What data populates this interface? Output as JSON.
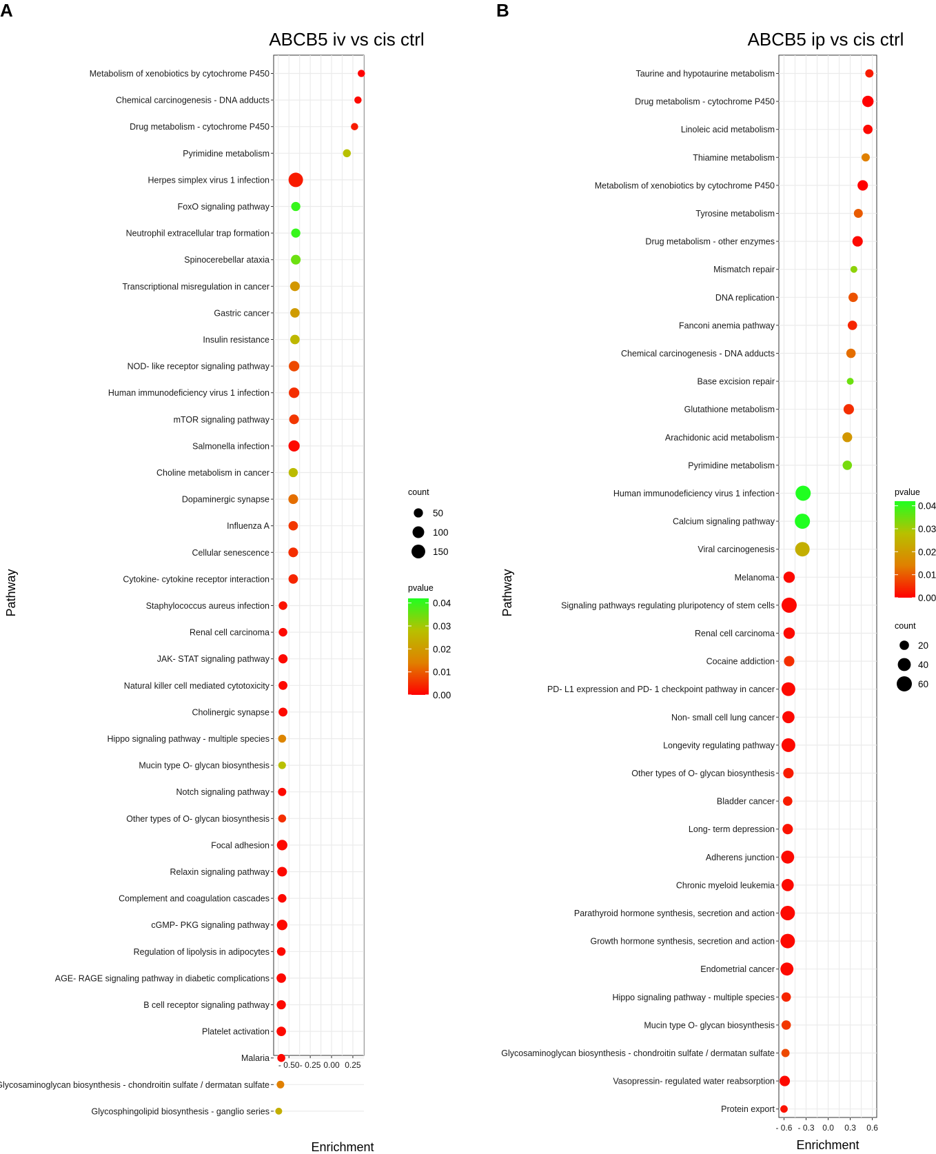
{
  "chart_data": [
    {
      "panel_label": "A",
      "type": "scatter",
      "title": "ABCB5 iv vs cis ctrl",
      "xlabel": "Enrichment",
      "ylabel": "Pathway",
      "xlim": [
        -0.68,
        0.38
      ],
      "xticks": [
        -0.5,
        -0.25,
        0.0,
        0.25
      ],
      "xtick_labels": [
        "- 0.50",
        "- 0.25",
        "0.00",
        "0.25"
      ],
      "grid": true,
      "categories": [
        "Metabolism of xenobiotics by cytochrome P450",
        "Chemical carcinogenesis -  DNA adducts",
        "Drug metabolism -  cytochrome P450",
        "Pyrimidine metabolism",
        "Herpes simplex virus 1 infection",
        "FoxO signaling pathway",
        "Neutrophil extracellular trap formation",
        "Spinocerebellar ataxia",
        "Transcriptional misregulation in cancer",
        "Gastric cancer",
        "Insulin resistance",
        "NOD- like receptor signaling pathway",
        "Human immunodeficiency virus 1 infection",
        "mTOR signaling pathway",
        "Salmonella infection",
        "Choline metabolism in cancer",
        "Dopaminergic synapse",
        "Influenza A",
        "Cellular senescence",
        "Cytokine- cytokine receptor interaction",
        "Staphylococcus aureus infection",
        "Renal cell carcinoma",
        "JAK- STAT signaling pathway",
        "Natural killer cell mediated cytotoxicity",
        "Cholinergic synapse",
        "Hippo signaling pathway -  multiple species",
        "Mucin type O- glycan biosynthesis",
        "Notch signaling pathway",
        "Other types of O- glycan biosynthesis",
        "Focal adhesion",
        "Relaxin signaling pathway",
        "Complement and coagulation cascades",
        "cGMP- PKG signaling pathway",
        "Regulation of lipolysis in adipocytes",
        "AGE- RAGE signaling pathway in diabetic complications",
        "B cell receptor signaling pathway",
        "Platelet activation",
        "Malaria",
        "Glycosaminoglycan biosynthesis -  chondroitin sulfate / dermatan sulfate",
        "Glycosphingolipid biosynthesis -  ganglio series"
      ],
      "enrichment": [
        0.35,
        0.31,
        0.27,
        0.18,
        -0.42,
        -0.42,
        -0.42,
        -0.42,
        -0.43,
        -0.43,
        -0.43,
        -0.44,
        -0.44,
        -0.44,
        -0.44,
        -0.45,
        -0.45,
        -0.45,
        -0.45,
        -0.45,
        -0.57,
        -0.57,
        -0.57,
        -0.57,
        -0.57,
        -0.58,
        -0.58,
        -0.58,
        -0.58,
        -0.58,
        -0.58,
        -0.58,
        -0.58,
        -0.59,
        -0.59,
        -0.59,
        -0.59,
        -0.59,
        -0.6,
        -0.62
      ],
      "count": [
        20,
        20,
        20,
        30,
        170,
        50,
        50,
        60,
        60,
        55,
        55,
        75,
        75,
        60,
        90,
        50,
        60,
        55,
        60,
        55,
        40,
        40,
        50,
        45,
        45,
        30,
        25,
        35,
        30,
        75,
        60,
        40,
        75,
        40,
        55,
        50,
        55,
        30,
        25,
        15
      ],
      "pvalue": [
        0.0,
        0.001,
        0.003,
        0.028,
        0.003,
        0.04,
        0.04,
        0.035,
        0.019,
        0.02,
        0.026,
        0.008,
        0.005,
        0.006,
        0.001,
        0.027,
        0.012,
        0.006,
        0.005,
        0.004,
        0.002,
        0.001,
        0.001,
        0.001,
        0.001,
        0.015,
        0.028,
        0.001,
        0.005,
        0.001,
        0.001,
        0.001,
        0.001,
        0.001,
        0.001,
        0.001,
        0.001,
        0.001,
        0.014,
        0.024
      ],
      "size_legend": {
        "title": "count",
        "values": [
          50,
          100,
          150
        ],
        "labels": [
          "50",
          "100",
          "150"
        ]
      },
      "color_legend": {
        "title": "pvalue",
        "low": 0.0,
        "high": 0.042,
        "labels": [
          "0.04",
          "0.03",
          "0.02",
          "0.01",
          "0.00"
        ],
        "values": [
          0.04,
          0.03,
          0.02,
          0.01,
          0.0
        ],
        "colors": [
          "#ff0000",
          "#e08000",
          "#b8c000",
          "#20ff20"
        ]
      }
    },
    {
      "panel_label": "B",
      "type": "scatter",
      "title": "ABCB5 ip vs cis ctrl",
      "xlabel": "Enrichment",
      "ylabel": "Pathway",
      "xlim": [
        -0.67,
        0.66
      ],
      "xticks": [
        -0.6,
        -0.3,
        0.0,
        0.3,
        0.6
      ],
      "xtick_labels": [
        "- 0.6",
        "- 0.3",
        "0.0",
        "0.3",
        "0.6"
      ],
      "grid": true,
      "categories": [
        "Taurine and hypotaurine metabolism",
        "Drug metabolism -  cytochrome P450",
        "Linoleic acid metabolism",
        "Thiamine metabolism",
        "Metabolism of xenobiotics by cytochrome P450",
        "Tyrosine metabolism",
        "Drug metabolism -  other enzymes",
        "Mismatch repair",
        "DNA replication",
        "Fanconi anemia pathway",
        "Chemical carcinogenesis -  DNA adducts",
        "Base excision repair",
        "Glutathione metabolism",
        "Arachidonic acid metabolism",
        "Pyrimidine metabolism",
        "Human immunodeficiency virus 1 infection",
        "Calcium signaling pathway",
        "Viral carcinogenesis",
        "Melanoma",
        "Signaling pathways regulating pluripotency of stem cells",
        "Renal cell carcinoma",
        "Cocaine addiction",
        "PD- L1 expression and PD- 1 checkpoint pathway in cancer",
        "Non- small cell lung cancer",
        "Longevity regulating pathway",
        "Other types of O- glycan biosynthesis",
        "Bladder cancer",
        "Long- term depression",
        "Adherens junction",
        "Chronic myeloid leukemia",
        "Parathyroid hormone synthesis, secretion and action",
        "Growth hormone synthesis, secretion and action",
        "Endometrial cancer",
        "Hippo signaling pathway -  multiple species",
        "Mucin type O- glycan biosynthesis",
        "Glycosaminoglycan biosynthesis -  chondroitin sulfate / dermatan sulfate",
        "Vasopressin- regulated water reabsorption",
        "Protein export"
      ],
      "enrichment": [
        0.56,
        0.54,
        0.54,
        0.51,
        0.47,
        0.41,
        0.4,
        0.35,
        0.34,
        0.33,
        0.31,
        0.3,
        0.28,
        0.26,
        0.26,
        -0.34,
        -0.35,
        -0.35,
        -0.53,
        -0.53,
        -0.53,
        -0.53,
        -0.54,
        -0.54,
        -0.54,
        -0.54,
        -0.55,
        -0.55,
        -0.55,
        -0.55,
        -0.55,
        -0.55,
        -0.56,
        -0.57,
        -0.57,
        -0.58,
        -0.59,
        -0.6
      ],
      "count": [
        15,
        30,
        20,
        15,
        25,
        18,
        25,
        10,
        20,
        20,
        20,
        10,
        25,
        22,
        20,
        55,
        55,
        50,
        30,
        55,
        30,
        25,
        45,
        35,
        45,
        25,
        20,
        25,
        40,
        35,
        50,
        50,
        40,
        20,
        20,
        15,
        25,
        12
      ],
      "pvalue": [
        0.003,
        0.0,
        0.001,
        0.014,
        0.0,
        0.01,
        0.001,
        0.032,
        0.009,
        0.004,
        0.012,
        0.035,
        0.005,
        0.019,
        0.034,
        0.043,
        0.042,
        0.024,
        0.001,
        0.001,
        0.001,
        0.005,
        0.001,
        0.001,
        0.001,
        0.003,
        0.003,
        0.002,
        0.001,
        0.001,
        0.001,
        0.001,
        0.001,
        0.004,
        0.006,
        0.008,
        0.001,
        0.002
      ],
      "size_legend": {
        "title": "count",
        "values": [
          20,
          40,
          60
        ],
        "labels": [
          "20",
          "40",
          "60"
        ]
      },
      "color_legend": {
        "title": "pvalue",
        "low": 0.0,
        "high": 0.042,
        "labels": [
          "0.04",
          "0.03",
          "0.02",
          "0.01",
          "0.00"
        ],
        "values": [
          0.04,
          0.03,
          0.02,
          0.01,
          0.0
        ],
        "colors": [
          "#ff0000",
          "#e08000",
          "#b8c000",
          "#20ff20"
        ]
      }
    }
  ]
}
